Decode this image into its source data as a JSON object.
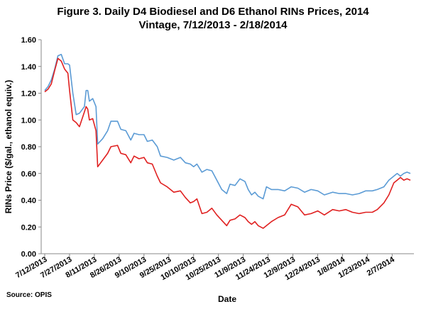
{
  "chart_data": {
    "type": "line",
    "title_line1": "Figure 3.  Daily D4 Biodiesel and D6 Ethanol RINs Prices, 2014",
    "title_line2": "Vintage, 7/12/2013 - 2/18/2014",
    "xlabel": "Date",
    "ylabel": "RINs Price ($/gal., ethanol equiv.)",
    "source": "Source: OPIS",
    "ylim": [
      0,
      1.6
    ],
    "y_ticks": [
      "0.00",
      "0.20",
      "0.40",
      "0.60",
      "0.80",
      "1.00",
      "1.20",
      "1.40",
      "1.60"
    ],
    "x_ticks": [
      "7/12/2013",
      "7/27/2013",
      "8/11/2013",
      "8/26/2013",
      "9/10/2013",
      "9/25/2013",
      "10/10/2013",
      "10/25/2013",
      "11/9/2013",
      "11/24/2013",
      "12/9/2013",
      "12/24/2013",
      "1/8/2014",
      "1/23/2014",
      "2/7/2014"
    ],
    "x_range": [
      "2013-07-12",
      "2014-02-18"
    ],
    "grid": false,
    "legend": "none",
    "series": [
      {
        "color": "#5b9bd5",
        "points": [
          [
            "2013-07-12",
            1.22
          ],
          [
            "2013-07-14",
            1.25
          ],
          [
            "2013-07-16",
            1.3
          ],
          [
            "2013-07-18",
            1.38
          ],
          [
            "2013-07-20",
            1.48
          ],
          [
            "2013-07-22",
            1.49
          ],
          [
            "2013-07-24",
            1.42
          ],
          [
            "2013-07-26",
            1.42
          ],
          [
            "2013-07-27",
            1.41
          ],
          [
            "2013-07-29",
            1.2
          ],
          [
            "2013-07-31",
            1.04
          ],
          [
            "2013-08-02",
            1.05
          ],
          [
            "2013-08-05",
            1.1
          ],
          [
            "2013-08-06",
            1.22
          ],
          [
            "2013-08-07",
            1.22
          ],
          [
            "2013-08-08",
            1.14
          ],
          [
            "2013-08-10",
            1.16
          ],
          [
            "2013-08-12",
            1.1
          ],
          [
            "2013-08-13",
            0.82
          ],
          [
            "2013-08-16",
            0.86
          ],
          [
            "2013-08-19",
            0.92
          ],
          [
            "2013-08-21",
            0.99
          ],
          [
            "2013-08-25",
            0.99
          ],
          [
            "2013-08-27",
            0.93
          ],
          [
            "2013-08-30",
            0.92
          ],
          [
            "2013-09-02",
            0.85
          ],
          [
            "2013-09-04",
            0.9
          ],
          [
            "2013-09-07",
            0.89
          ],
          [
            "2013-09-10",
            0.89
          ],
          [
            "2013-09-12",
            0.84
          ],
          [
            "2013-09-15",
            0.85
          ],
          [
            "2013-09-18",
            0.8
          ],
          [
            "2013-09-20",
            0.73
          ],
          [
            "2013-09-24",
            0.72
          ],
          [
            "2013-09-28",
            0.7
          ],
          [
            "2013-10-02",
            0.72
          ],
          [
            "2013-10-05",
            0.68
          ],
          [
            "2013-10-08",
            0.67
          ],
          [
            "2013-10-10",
            0.65
          ],
          [
            "2013-10-12",
            0.67
          ],
          [
            "2013-10-15",
            0.61
          ],
          [
            "2013-10-18",
            0.63
          ],
          [
            "2013-10-21",
            0.62
          ],
          [
            "2013-10-24",
            0.55
          ],
          [
            "2013-10-27",
            0.48
          ],
          [
            "2013-10-30",
            0.45
          ],
          [
            "2013-11-01",
            0.52
          ],
          [
            "2013-11-04",
            0.51
          ],
          [
            "2013-11-07",
            0.56
          ],
          [
            "2013-11-10",
            0.54
          ],
          [
            "2013-11-12",
            0.48
          ],
          [
            "2013-11-14",
            0.44
          ],
          [
            "2013-11-16",
            0.46
          ],
          [
            "2013-11-18",
            0.43
          ],
          [
            "2013-11-21",
            0.41
          ],
          [
            "2013-11-23",
            0.5
          ],
          [
            "2013-11-26",
            0.48
          ],
          [
            "2013-11-30",
            0.48
          ],
          [
            "2013-12-04",
            0.47
          ],
          [
            "2013-12-08",
            0.5
          ],
          [
            "2013-12-12",
            0.49
          ],
          [
            "2013-12-16",
            0.46
          ],
          [
            "2013-12-20",
            0.48
          ],
          [
            "2013-12-24",
            0.47
          ],
          [
            "2013-12-28",
            0.44
          ],
          [
            "2014-01-02",
            0.46
          ],
          [
            "2014-01-06",
            0.45
          ],
          [
            "2014-01-10",
            0.45
          ],
          [
            "2014-01-14",
            0.44
          ],
          [
            "2014-01-18",
            0.45
          ],
          [
            "2014-01-22",
            0.47
          ],
          [
            "2014-01-26",
            0.47
          ],
          [
            "2014-01-29",
            0.48
          ],
          [
            "2014-02-02",
            0.5
          ],
          [
            "2014-02-05",
            0.55
          ],
          [
            "2014-02-08",
            0.58
          ],
          [
            "2014-02-10",
            0.6
          ],
          [
            "2014-02-12",
            0.58
          ],
          [
            "2014-02-14",
            0.6
          ],
          [
            "2014-02-16",
            0.61
          ],
          [
            "2014-02-18",
            0.6
          ]
        ]
      },
      {
        "color": "#e02020",
        "points": [
          [
            "2013-07-12",
            1.21
          ],
          [
            "2013-07-14",
            1.23
          ],
          [
            "2013-07-16",
            1.27
          ],
          [
            "2013-07-18",
            1.37
          ],
          [
            "2013-07-20",
            1.46
          ],
          [
            "2013-07-22",
            1.44
          ],
          [
            "2013-07-24",
            1.38
          ],
          [
            "2013-07-26",
            1.35
          ],
          [
            "2013-07-27",
            1.22
          ],
          [
            "2013-07-29",
            1.0
          ],
          [
            "2013-07-31",
            0.98
          ],
          [
            "2013-08-02",
            0.95
          ],
          [
            "2013-08-05",
            1.06
          ],
          [
            "2013-08-06",
            1.1
          ],
          [
            "2013-08-07",
            1.08
          ],
          [
            "2013-08-08",
            1.0
          ],
          [
            "2013-08-10",
            1.01
          ],
          [
            "2013-08-12",
            0.92
          ],
          [
            "2013-08-13",
            0.65
          ],
          [
            "2013-08-16",
            0.7
          ],
          [
            "2013-08-19",
            0.75
          ],
          [
            "2013-08-21",
            0.8
          ],
          [
            "2013-08-25",
            0.81
          ],
          [
            "2013-08-27",
            0.75
          ],
          [
            "2013-08-30",
            0.74
          ],
          [
            "2013-09-02",
            0.68
          ],
          [
            "2013-09-04",
            0.73
          ],
          [
            "2013-09-07",
            0.71
          ],
          [
            "2013-09-10",
            0.72
          ],
          [
            "2013-09-12",
            0.68
          ],
          [
            "2013-09-15",
            0.67
          ],
          [
            "2013-09-18",
            0.58
          ],
          [
            "2013-09-20",
            0.53
          ],
          [
            "2013-09-24",
            0.5
          ],
          [
            "2013-09-28",
            0.46
          ],
          [
            "2013-10-02",
            0.47
          ],
          [
            "2013-10-05",
            0.42
          ],
          [
            "2013-10-08",
            0.38
          ],
          [
            "2013-10-10",
            0.39
          ],
          [
            "2013-10-12",
            0.41
          ],
          [
            "2013-10-15",
            0.3
          ],
          [
            "2013-10-18",
            0.31
          ],
          [
            "2013-10-21",
            0.34
          ],
          [
            "2013-10-24",
            0.29
          ],
          [
            "2013-10-27",
            0.25
          ],
          [
            "2013-10-30",
            0.21
          ],
          [
            "2013-11-01",
            0.25
          ],
          [
            "2013-11-04",
            0.26
          ],
          [
            "2013-11-07",
            0.29
          ],
          [
            "2013-11-10",
            0.27
          ],
          [
            "2013-11-12",
            0.24
          ],
          [
            "2013-11-14",
            0.22
          ],
          [
            "2013-11-16",
            0.24
          ],
          [
            "2013-11-18",
            0.21
          ],
          [
            "2013-11-21",
            0.19
          ],
          [
            "2013-11-23",
            0.21
          ],
          [
            "2013-11-26",
            0.24
          ],
          [
            "2013-11-30",
            0.27
          ],
          [
            "2013-12-04",
            0.29
          ],
          [
            "2013-12-08",
            0.37
          ],
          [
            "2013-12-12",
            0.35
          ],
          [
            "2013-12-16",
            0.29
          ],
          [
            "2013-12-20",
            0.3
          ],
          [
            "2013-12-24",
            0.32
          ],
          [
            "2013-12-28",
            0.29
          ],
          [
            "2014-01-02",
            0.33
          ],
          [
            "2014-01-06",
            0.32
          ],
          [
            "2014-01-10",
            0.33
          ],
          [
            "2014-01-14",
            0.31
          ],
          [
            "2014-01-18",
            0.3
          ],
          [
            "2014-01-22",
            0.31
          ],
          [
            "2014-01-26",
            0.31
          ],
          [
            "2014-01-29",
            0.33
          ],
          [
            "2014-02-02",
            0.38
          ],
          [
            "2014-02-05",
            0.44
          ],
          [
            "2014-02-08",
            0.53
          ],
          [
            "2014-02-10",
            0.55
          ],
          [
            "2014-02-12",
            0.57
          ],
          [
            "2014-02-14",
            0.55
          ],
          [
            "2014-02-16",
            0.56
          ],
          [
            "2014-02-18",
            0.55
          ]
        ]
      }
    ]
  }
}
